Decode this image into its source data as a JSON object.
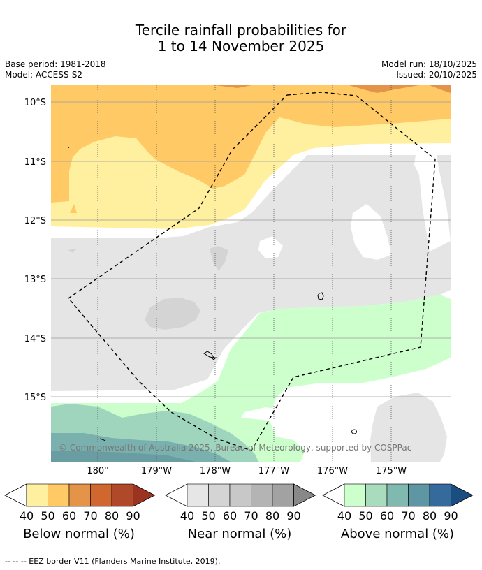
{
  "header": {
    "title_line1": "Tercile rainfall probabilities for",
    "title_line2": "1 to 14 November 2025",
    "base_period": "Base period: 1981-2018",
    "model": "Model: ACCESS-S2",
    "model_run": "Model run: 18/10/2025",
    "issued": "Issued: 20/10/2025"
  },
  "map": {
    "lat_labels": [
      "10°S",
      "11°S",
      "12°S",
      "13°S",
      "14°S",
      "15°S"
    ],
    "lon_labels": [
      "180°",
      "179°W",
      "178°W",
      "177°W",
      "176°W",
      "175°W"
    ],
    "copyright": "© Commonwealth of Australia 2025, Bureau of Meteorology, supported by COSPPac",
    "colors": {
      "below_40": "#fff0a0",
      "below_50": "#ffc966",
      "below_60": "#e39448",
      "near_40": "#e5e5e5",
      "near_50": "#d4d4d4",
      "above_40": "#ccffcc",
      "above_50": "#9fd5bd",
      "above_60": "#7ab0ad",
      "above_70": "#6a9da2"
    }
  },
  "legend": {
    "ticks": [
      "40",
      "50",
      "60",
      "70",
      "80",
      "90"
    ],
    "below": {
      "label": "Below normal (%)",
      "colors": [
        "#fff0a0",
        "#ffc966",
        "#e39448",
        "#d0672f",
        "#b0482a",
        "#9b3320"
      ]
    },
    "near": {
      "label": "Near normal (%)",
      "colors": [
        "#e6e6e6",
        "#d4d4d4",
        "#c8c8c8",
        "#b4b4b4",
        "#a2a2a2",
        "#888888"
      ]
    },
    "above": {
      "label": "Above normal (%)",
      "colors": [
        "#ccffcc",
        "#a9dbbd",
        "#80b9b0",
        "#5e96a4",
        "#346a9c",
        "#1a4d80"
      ]
    }
  },
  "footer": {
    "eez_note": "--  --  -- EEZ border V11 (Flanders Marine Institute, 2019)."
  }
}
